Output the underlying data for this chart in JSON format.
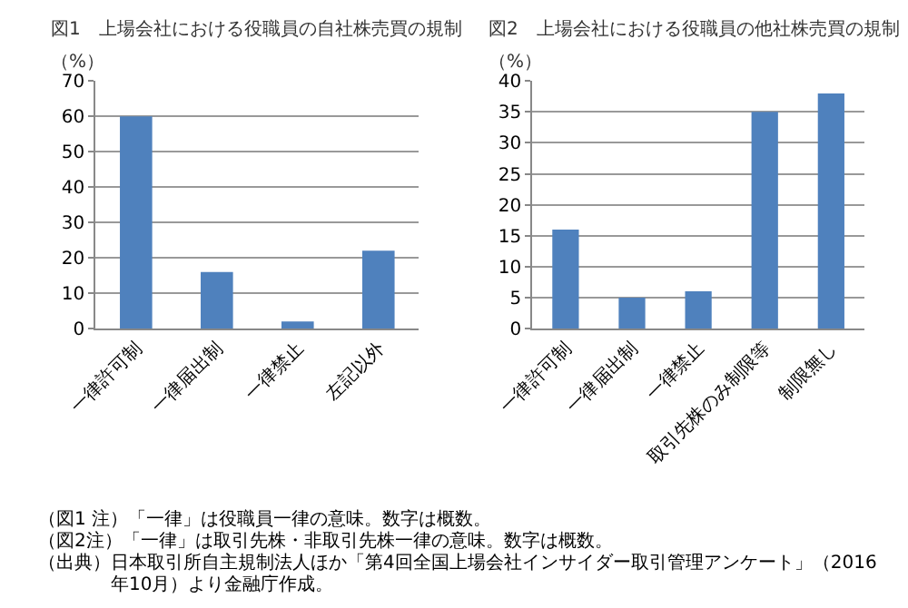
{
  "chart_data": [
    {
      "type": "bar",
      "title": "図1　上場会社における役職員の自社株売買の規制",
      "ylabel": "（%）",
      "categories": [
        "一律許可制",
        "一律届出制",
        "一律禁止",
        "左記以外"
      ],
      "values": [
        60,
        16,
        2,
        22
      ],
      "color": "#4f81bd",
      "ylim": [
        0,
        70
      ],
      "yticks": [
        0,
        10,
        20,
        30,
        40,
        50,
        60,
        70
      ],
      "grid": "y"
    },
    {
      "type": "bar",
      "title": "図2　上場会社における役職員の他社株売買の規制",
      "ylabel": "（%）",
      "categories": [
        "一律許可制",
        "一律届出制",
        "一律禁止",
        "取引先株のみ制限等",
        "制限無し"
      ],
      "values": [
        16,
        5,
        6,
        35,
        38
      ],
      "color": "#4f81bd",
      "ylim": [
        0,
        40
      ],
      "yticks": [
        0,
        5,
        10,
        15,
        20,
        25,
        30,
        35,
        40
      ],
      "grid": "y",
      "annotations": [
        "（図1 注）「一律」は役職員一律の意味。数字は概数。",
        "（図2注）「一律」は取引先株・非取引先株一律の意味。数字は概数。",
        "（出典）日本取引所自主規制法人ほか「第4回全国上場会社インサイダー取引管理アンケート」（2016年10月）より金融庁作成。"
      ]
    }
  ]
}
